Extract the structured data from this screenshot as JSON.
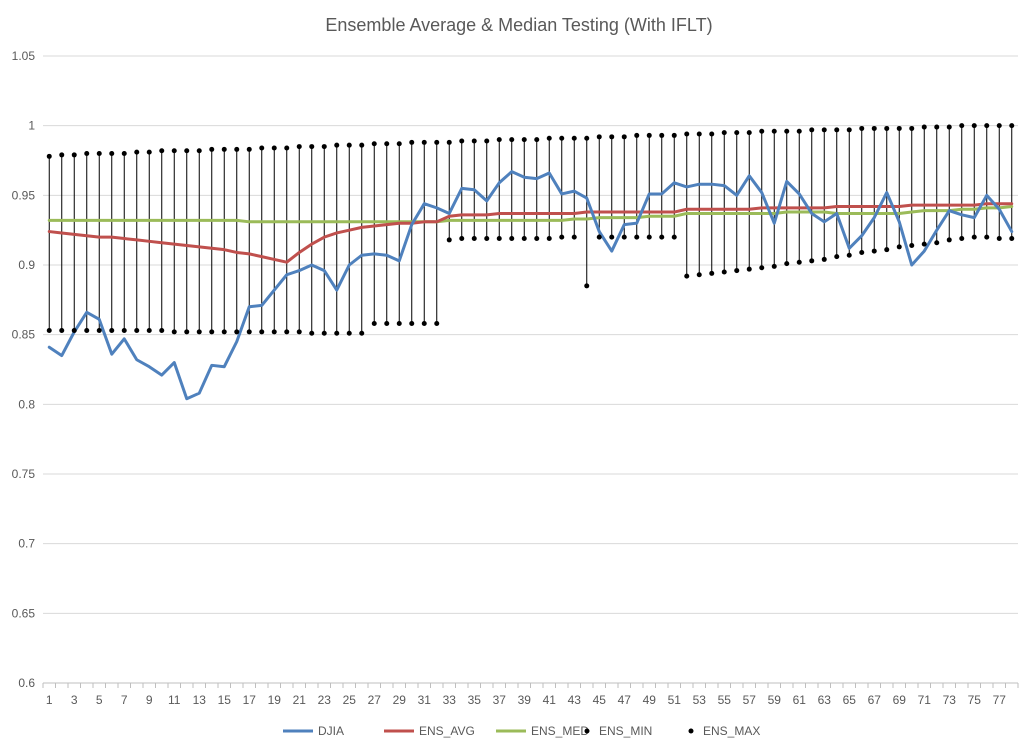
{
  "chart_data": {
    "type": "line",
    "title": "Ensemble Average & Median Testing (With IFLT)",
    "xlabel": "",
    "ylabel": "",
    "ylim": [
      0.6,
      1.05
    ],
    "y_ticks": [
      0.6,
      0.65,
      0.7,
      0.75,
      0.8,
      0.85,
      0.9,
      0.95,
      1,
      1.05
    ],
    "x": [
      1,
      2,
      3,
      4,
      5,
      6,
      7,
      8,
      9,
      10,
      11,
      12,
      13,
      14,
      15,
      16,
      17,
      18,
      19,
      20,
      21,
      22,
      23,
      24,
      25,
      26,
      27,
      28,
      29,
      30,
      31,
      32,
      33,
      34,
      35,
      36,
      37,
      38,
      39,
      40,
      41,
      42,
      43,
      44,
      45,
      46,
      47,
      48,
      49,
      50,
      51,
      52,
      53,
      54,
      55,
      56,
      57,
      58,
      59,
      60,
      61,
      62,
      63,
      64,
      65,
      66,
      67,
      68,
      69,
      70,
      71,
      72,
      73,
      74,
      75,
      76,
      77,
      78
    ],
    "x_tick_labels": [
      "1",
      "3",
      "5",
      "7",
      "9",
      "11",
      "13",
      "15",
      "17",
      "19",
      "21",
      "23",
      "25",
      "27",
      "29",
      "31",
      "33",
      "35",
      "37",
      "39",
      "41",
      "43",
      "45",
      "47",
      "49",
      "51",
      "53",
      "55",
      "57",
      "59",
      "61",
      "63",
      "65",
      "67",
      "69",
      "71",
      "73",
      "75",
      "77"
    ],
    "grid": true,
    "legend_position": "bottom",
    "series": [
      {
        "name": "DJIA",
        "style": "line",
        "color": "#4f81bd",
        "values": [
          0.841,
          0.835,
          0.852,
          0.866,
          0.861,
          0.836,
          0.847,
          0.832,
          0.827,
          0.821,
          0.83,
          0.804,
          0.808,
          0.828,
          0.827,
          0.845,
          0.87,
          0.871,
          0.882,
          0.893,
          0.896,
          0.9,
          0.896,
          0.882,
          0.9,
          0.907,
          0.908,
          0.907,
          0.903,
          0.929,
          0.944,
          0.941,
          0.937,
          0.955,
          0.954,
          0.946,
          0.959,
          0.967,
          0.963,
          0.962,
          0.966,
          0.951,
          0.953,
          0.948,
          0.924,
          0.91,
          0.929,
          0.93,
          0.951,
          0.951,
          0.959,
          0.956,
          0.958,
          0.958,
          0.957,
          0.95,
          0.964,
          0.952,
          0.93,
          0.96,
          0.951,
          0.937,
          0.931,
          0.937,
          0.912,
          0.921,
          0.934,
          0.952,
          0.931,
          0.9,
          0.91,
          0.925,
          0.939,
          0.936,
          0.934,
          0.95,
          0.94,
          0.924
        ]
      },
      {
        "name": "ENS_AVG",
        "style": "line",
        "color": "#c0504d",
        "values": [
          0.924,
          0.923,
          0.922,
          0.921,
          0.92,
          0.92,
          0.919,
          0.918,
          0.917,
          0.916,
          0.915,
          0.914,
          0.913,
          0.912,
          0.911,
          0.909,
          0.908,
          0.906,
          0.904,
          0.902,
          0.909,
          0.915,
          0.92,
          0.923,
          0.925,
          0.927,
          0.928,
          0.929,
          0.93,
          0.93,
          0.931,
          0.931,
          0.935,
          0.936,
          0.936,
          0.936,
          0.937,
          0.937,
          0.937,
          0.937,
          0.937,
          0.937,
          0.937,
          0.938,
          0.938,
          0.938,
          0.938,
          0.938,
          0.938,
          0.938,
          0.938,
          0.94,
          0.94,
          0.94,
          0.94,
          0.94,
          0.94,
          0.941,
          0.941,
          0.941,
          0.941,
          0.941,
          0.941,
          0.942,
          0.942,
          0.942,
          0.942,
          0.942,
          0.942,
          0.943,
          0.943,
          0.943,
          0.943,
          0.943,
          0.943,
          0.944,
          0.944,
          0.944
        ]
      },
      {
        "name": "ENS_MED",
        "style": "line",
        "color": "#9bbb59",
        "values": [
          0.932,
          0.932,
          0.932,
          0.932,
          0.932,
          0.932,
          0.932,
          0.932,
          0.932,
          0.932,
          0.932,
          0.932,
          0.932,
          0.932,
          0.932,
          0.932,
          0.931,
          0.931,
          0.931,
          0.931,
          0.931,
          0.931,
          0.931,
          0.931,
          0.931,
          0.931,
          0.931,
          0.931,
          0.931,
          0.931,
          0.931,
          0.931,
          0.932,
          0.932,
          0.932,
          0.932,
          0.932,
          0.932,
          0.932,
          0.932,
          0.932,
          0.932,
          0.933,
          0.933,
          0.934,
          0.934,
          0.934,
          0.934,
          0.935,
          0.935,
          0.935,
          0.937,
          0.937,
          0.937,
          0.937,
          0.937,
          0.937,
          0.937,
          0.937,
          0.938,
          0.938,
          0.938,
          0.938,
          0.937,
          0.937,
          0.937,
          0.937,
          0.937,
          0.937,
          0.938,
          0.939,
          0.939,
          0.939,
          0.94,
          0.94,
          0.941,
          0.941,
          0.942
        ]
      },
      {
        "name": "ENS_MIN",
        "style": "marker",
        "color": "#000000",
        "values": [
          0.853,
          0.853,
          0.853,
          0.853,
          0.853,
          0.853,
          0.853,
          0.853,
          0.853,
          0.853,
          0.852,
          0.852,
          0.852,
          0.852,
          0.852,
          0.852,
          0.852,
          0.852,
          0.852,
          0.852,
          0.852,
          0.851,
          0.851,
          0.851,
          0.851,
          0.851,
          0.858,
          0.858,
          0.858,
          0.858,
          0.858,
          0.858,
          0.918,
          0.919,
          0.919,
          0.919,
          0.919,
          0.919,
          0.919,
          0.919,
          0.919,
          0.92,
          0.92,
          0.885,
          0.92,
          0.92,
          0.92,
          0.92,
          0.92,
          0.92,
          0.92,
          0.892,
          0.893,
          0.894,
          0.895,
          0.896,
          0.897,
          0.898,
          0.899,
          0.901,
          0.902,
          0.903,
          0.904,
          0.906,
          0.907,
          0.909,
          0.91,
          0.911,
          0.913,
          0.914,
          0.915,
          0.916,
          0.918,
          0.919,
          0.92,
          0.92,
          0.919,
          0.919
        ]
      },
      {
        "name": "ENS_MAX",
        "style": "marker",
        "color": "#000000",
        "values": [
          0.978,
          0.979,
          0.979,
          0.98,
          0.98,
          0.98,
          0.98,
          0.981,
          0.981,
          0.982,
          0.982,
          0.982,
          0.982,
          0.983,
          0.983,
          0.983,
          0.983,
          0.984,
          0.984,
          0.984,
          0.985,
          0.985,
          0.985,
          0.986,
          0.986,
          0.986,
          0.987,
          0.987,
          0.987,
          0.988,
          0.988,
          0.988,
          0.988,
          0.989,
          0.989,
          0.989,
          0.99,
          0.99,
          0.99,
          0.99,
          0.991,
          0.991,
          0.991,
          0.991,
          0.992,
          0.992,
          0.992,
          0.993,
          0.993,
          0.993,
          0.993,
          0.994,
          0.994,
          0.994,
          0.995,
          0.995,
          0.995,
          0.996,
          0.996,
          0.996,
          0.996,
          0.997,
          0.997,
          0.997,
          0.997,
          0.998,
          0.998,
          0.998,
          0.998,
          0.998,
          0.999,
          0.999,
          0.999,
          1.0,
          1.0,
          1.0,
          1.0,
          1.0
        ]
      }
    ]
  }
}
